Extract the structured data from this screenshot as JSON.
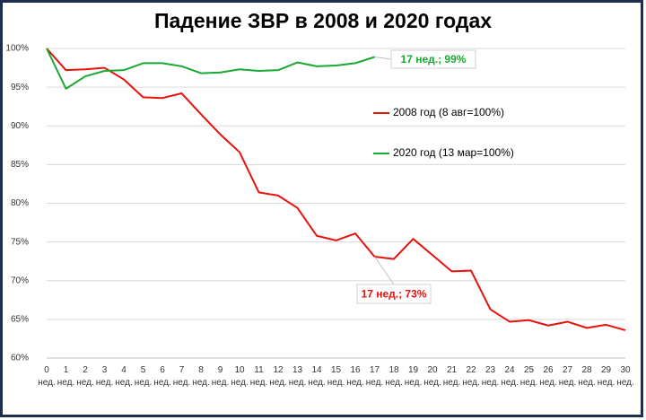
{
  "chart_data": {
    "type": "line",
    "title": "Падение ЗВР в 2008 и 2020 годах",
    "categories": [
      "0 нед.",
      "1 нед.",
      "2 нед.",
      "3 нед.",
      "4 нед.",
      "5 нед.",
      "6 нед.",
      "7 нед.",
      "8 нед.",
      "9 нед.",
      "10 нед.",
      "11 нед.",
      "12 нед.",
      "13 нед.",
      "14 нед.",
      "15 нед.",
      "16 нед.",
      "17 нед.",
      "18 нед.",
      "19 нед.",
      "20 нед.",
      "21 нед.",
      "22 нед.",
      "23 нед.",
      "24 нед.",
      "25 нед.",
      "26 нед.",
      "27 нед.",
      "28 нед.",
      "29 нед.",
      "30 нед."
    ],
    "series": [
      {
        "name": "2008 год (8 авг=100%)",
        "color": "#e8120c",
        "annotation": "17 нед.; 73%",
        "values": [
          100,
          97.2,
          97.3,
          97.5,
          96,
          93.7,
          93.6,
          94.2,
          91.5,
          88.9,
          86.6,
          81.4,
          81.0,
          79.4,
          75.8,
          75.2,
          76.1,
          73.1,
          72.8,
          75.4,
          73.3,
          71.2,
          71.3,
          66.3,
          64.7,
          64.9,
          64.2,
          64.7,
          63.9,
          64.3,
          63.6
        ]
      },
      {
        "name": "2020 год (13 мар=100%)",
        "color": "#1aa832",
        "annotation": "17 нед.; 99%",
        "values": [
          100,
          94.8,
          96.4,
          97.1,
          97.2,
          98.1,
          98.1,
          97.7,
          96.8,
          96.9,
          97.3,
          97.1,
          97.2,
          98.2,
          97.7,
          97.8,
          98.1,
          98.9,
          null,
          null,
          null,
          null,
          null,
          null,
          null,
          null,
          null,
          null,
          null,
          null,
          null
        ]
      }
    ],
    "ylim": [
      60,
      100
    ],
    "yticks": [
      {
        "value": 60,
        "label": "60%"
      },
      {
        "value": 65,
        "label": "65%"
      },
      {
        "value": 70,
        "label": "70%"
      },
      {
        "value": 75,
        "label": "75%"
      },
      {
        "value": 80,
        "label": "80%"
      },
      {
        "value": 85,
        "label": "85%"
      },
      {
        "value": 90,
        "label": "90%"
      },
      {
        "value": 95,
        "label": "95%"
      },
      {
        "value": 100,
        "label": "100%"
      }
    ],
    "grid": true
  }
}
